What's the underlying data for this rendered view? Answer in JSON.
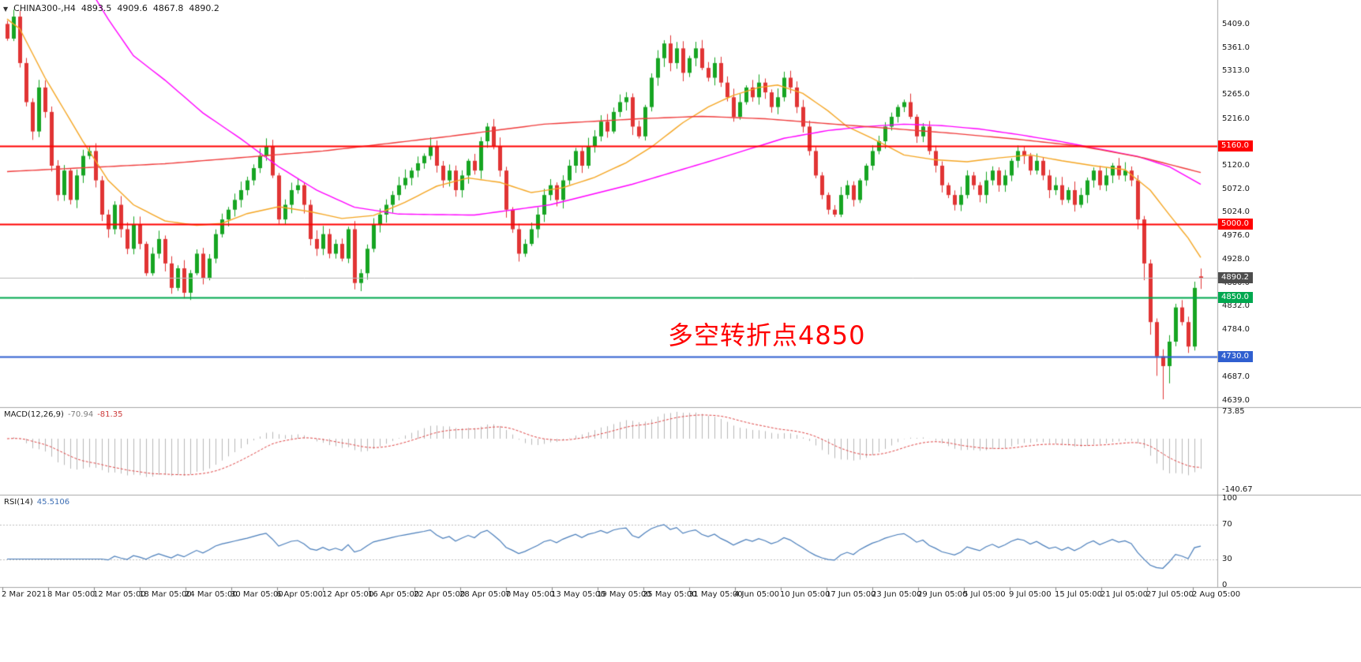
{
  "chart": {
    "symbol_with_timeframe": "CHINA300-,H4",
    "dropdown_icon": "▼",
    "ohlc_display": {
      "open": "4893.5",
      "high": "4909.6",
      "low": "4867.8",
      "close": "4890.2"
    },
    "annotation": {
      "text": "多空转折点4850",
      "color": "#ff0000"
    }
  },
  "indicators": {
    "macd": {
      "label": "MACD(12,26,9)",
      "value_main": "-70.94",
      "value_signal": "-81.35"
    },
    "rsi": {
      "label": "RSI(14)",
      "value": "45.5106"
    }
  },
  "chart_data": [
    {
      "type": "candlestick",
      "symbol": "CHINA300-",
      "timeframe": "H4",
      "title": "CHINA300-,H4",
      "ylim": [
        4626,
        5459
      ],
      "grid": false,
      "up_color": "#16a522",
      "down_color": "#e13434",
      "y_ticks": [
        "5409.0",
        "5361.0",
        "5313.0",
        "5265.0",
        "5216.0",
        "5120.0",
        "5072.0",
        "5024.0",
        "4976.0",
        "4928.0",
        "4880.0",
        "4832.0",
        "4784.0",
        "4687.0",
        "4639.0"
      ],
      "x_labels": [
        "2 Mar 2021",
        "8 Mar 05:00",
        "12 Mar 05:00",
        "18 Mar 05:00",
        "24 Mar 05:00",
        "30 Mar 05:00",
        "6 Apr 05:00",
        "12 Apr 05:00",
        "16 Apr 05:00",
        "22 Apr 05:00",
        "28 Apr 05:00",
        "7 May 05:00",
        "13 May 05:00",
        "19 May 05:00",
        "25 May 05:00",
        "31 May 05:00",
        "4 Jun 05:00",
        "10 Jun 05:00",
        "17 Jun 05:00",
        "23 Jun 05:00",
        "29 Jun 05:00",
        "5 Jul 05:00",
        "9 Jul 05:00",
        "15 Jul 05:00",
        "21 Jul 05:00",
        "27 Jul 05:00",
        "2 Aug 05:00"
      ],
      "closes": [
        5380,
        5425,
        5330,
        5250,
        5190,
        5280,
        5230,
        5120,
        5060,
        5110,
        5050,
        5100,
        5140,
        5150,
        5090,
        5020,
        4990,
        5040,
        4990,
        4950,
        5000,
        4960,
        4900,
        4940,
        4970,
        4920,
        4870,
        4910,
        4860,
        4900,
        4940,
        4890,
        4930,
        4980,
        5010,
        5030,
        5050,
        5070,
        5090,
        5115,
        5140,
        5160,
        5100,
        5010,
        5040,
        5070,
        5080,
        5040,
        4970,
        4950,
        4980,
        4940,
        4960,
        4930,
        4990,
        4880,
        4900,
        4950,
        5000,
        5020,
        5040,
        5060,
        5080,
        5095,
        5110,
        5125,
        5140,
        5160,
        5120,
        5090,
        5110,
        5070,
        5100,
        5130,
        5110,
        5170,
        5200,
        5160,
        5110,
        5030,
        4990,
        4940,
        4960,
        4990,
        5020,
        5060,
        5080,
        5050,
        5090,
        5120,
        5150,
        5120,
        5160,
        5180,
        5210,
        5190,
        5230,
        5250,
        5260,
        5200,
        5180,
        5240,
        5300,
        5340,
        5370,
        5330,
        5360,
        5310,
        5340,
        5360,
        5320,
        5300,
        5330,
        5290,
        5260,
        5220,
        5250,
        5280,
        5260,
        5290,
        5270,
        5240,
        5260,
        5300,
        5280,
        5240,
        5200,
        5150,
        5100,
        5060,
        5030,
        5020,
        5060,
        5080,
        5050,
        5090,
        5120,
        5150,
        5170,
        5200,
        5220,
        5240,
        5250,
        5220,
        5180,
        5200,
        5150,
        5120,
        5080,
        5060,
        5040,
        5060,
        5100,
        5080,
        5060,
        5090,
        5110,
        5080,
        5100,
        5130,
        5150,
        5140,
        5110,
        5130,
        5100,
        5070,
        5080,
        5050,
        5070,
        5040,
        5060,
        5090,
        5110,
        5080,
        5100,
        5120,
        5100,
        5110,
        5090,
        5010,
        4920,
        4800,
        4730,
        4710,
        4760,
        4830,
        4800,
        4750,
        4870,
        4890.2
      ],
      "last_ohlc": {
        "open": 4893.5,
        "high": 4909.6,
        "low": 4867.8,
        "close": 4890.2
      },
      "spike_low": {
        "index": 183,
        "price": 4642
      },
      "moving_averages": [
        {
          "name": "ma-fast-orange",
          "color": "#f5a623",
          "path": [
            [
              0,
              5420
            ],
            [
              2,
              5400
            ],
            [
              6,
              5300
            ],
            [
              12,
              5170
            ],
            [
              16,
              5090
            ],
            [
              20,
              5040
            ],
            [
              25,
              5007
            ],
            [
              30,
              4998
            ],
            [
              34,
              5002
            ],
            [
              38,
              5022
            ],
            [
              43,
              5036
            ],
            [
              48,
              5026
            ],
            [
              53,
              5012
            ],
            [
              58,
              5018
            ],
            [
              63,
              5045
            ],
            [
              68,
              5078
            ],
            [
              73,
              5095
            ],
            [
              78,
              5086
            ],
            [
              83,
              5065
            ],
            [
              88,
              5075
            ],
            [
              93,
              5096
            ],
            [
              98,
              5126
            ],
            [
              102,
              5158
            ],
            [
              107,
              5208
            ],
            [
              111,
              5240
            ],
            [
              115,
              5264
            ],
            [
              119,
              5280
            ],
            [
              122,
              5285
            ],
            [
              126,
              5268
            ],
            [
              130,
              5232
            ],
            [
              133,
              5200
            ],
            [
              137,
              5176
            ],
            [
              142,
              5142
            ],
            [
              147,
              5132
            ],
            [
              152,
              5128
            ],
            [
              157,
              5136
            ],
            [
              162,
              5142
            ],
            [
              167,
              5130
            ],
            [
              172,
              5120
            ],
            [
              177,
              5112
            ],
            [
              181,
              5070
            ],
            [
              184,
              5020
            ],
            [
              187,
              4972
            ],
            [
              189,
              4932
            ]
          ]
        },
        {
          "name": "ma-mid-magenta",
          "color": "#ff00ff",
          "path": [
            [
              14,
              5462
            ],
            [
              16,
              5420
            ],
            [
              20,
              5345
            ],
            [
              25,
              5295
            ],
            [
              31,
              5228
            ],
            [
              37,
              5175
            ],
            [
              43,
              5118
            ],
            [
              49,
              5070
            ],
            [
              55,
              5035
            ],
            [
              62,
              5021
            ],
            [
              74,
              5019
            ],
            [
              86,
              5040
            ],
            [
              99,
              5082
            ],
            [
              111,
              5128
            ],
            [
              123,
              5176
            ],
            [
              130,
              5192
            ],
            [
              136,
              5200
            ],
            [
              142,
              5205
            ],
            [
              148,
              5202
            ],
            [
              154,
              5195
            ],
            [
              160,
              5184
            ],
            [
              167,
              5169
            ],
            [
              173,
              5154
            ],
            [
              179,
              5139
            ],
            [
              184,
              5118
            ],
            [
              189,
              5082
            ]
          ]
        },
        {
          "name": "ma-slow-red",
          "color": "#f03c3c",
          "path": [
            [
              0,
              5108
            ],
            [
              25,
              5124
            ],
            [
              50,
              5150
            ],
            [
              70,
              5180
            ],
            [
              85,
              5205
            ],
            [
              100,
              5216
            ],
            [
              110,
              5221
            ],
            [
              120,
              5216
            ],
            [
              130,
              5206
            ],
            [
              140,
              5196
            ],
            [
              150,
              5186
            ],
            [
              160,
              5174
            ],
            [
              170,
              5160
            ],
            [
              180,
              5136
            ],
            [
              189,
              5106
            ]
          ]
        }
      ],
      "horizontal_lines": [
        {
          "price": 5160.0,
          "label": "5160.0",
          "color": "#ff0000",
          "width": 2
        },
        {
          "price": 5000.0,
          "label": "5000.0",
          "color": "#ff0000",
          "width": 2
        },
        {
          "price": 4890.2,
          "label": "4890.2",
          "color": "#b8b8b8",
          "label_bg": "#4d4d4d",
          "width": 1,
          "role": "current-price"
        },
        {
          "price": 4850.0,
          "label": "4850.0",
          "color": "#00a84f",
          "width": 2
        },
        {
          "price": 4730.0,
          "label": "4730.0",
          "color": "#2f5fd0",
          "width": 2
        }
      ],
      "annotation": {
        "text": "多空转折点4850",
        "color": "#ff0000"
      }
    },
    {
      "type": "line",
      "name": "MACD",
      "label": "MACD(12,26,9)",
      "params": {
        "fast": 12,
        "slow": 26,
        "signal": 9
      },
      "current_values": {
        "macd": -70.94,
        "signal": -81.35
      },
      "axis_ticks": [
        "73.85",
        "-140.67"
      ],
      "ylim": [
        -150,
        80
      ],
      "histogram_color": "#b8b8b8",
      "signal_color": "#e04646",
      "signal_style": "dashed",
      "source": "derived from candlestick closes"
    },
    {
      "type": "line",
      "name": "RSI",
      "label": "RSI(14)",
      "period": 14,
      "current_value": 45.5106,
      "levels": [
        70,
        30
      ],
      "axis_ticks": [
        "100",
        "70",
        "30",
        "0"
      ],
      "ylim": [
        0,
        100
      ],
      "line_color": "#4a7ebb",
      "source": "derived from candlestick closes"
    }
  ]
}
